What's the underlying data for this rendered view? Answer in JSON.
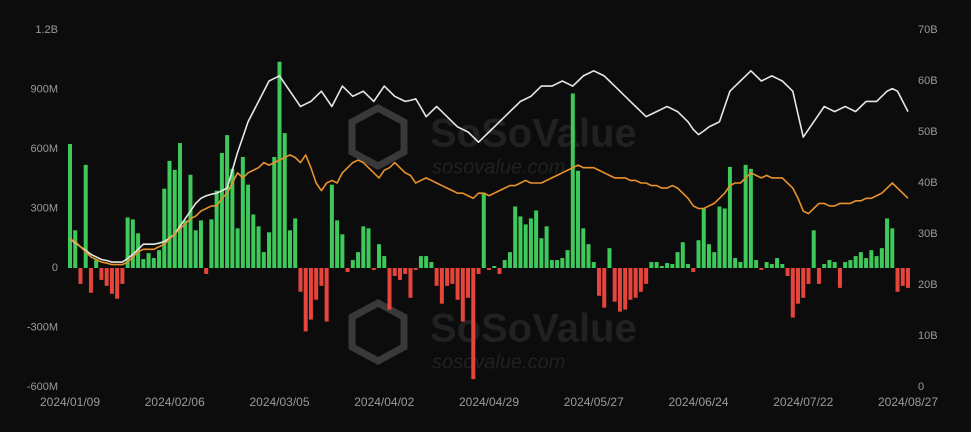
{
  "chart_data": {
    "type": "bar",
    "watermark": {
      "brand": "SoSoValue",
      "url": "sosovalue.com"
    },
    "categories": [
      "2024/01/09",
      null,
      null,
      null,
      null,
      null,
      null,
      null,
      null,
      null,
      null,
      null,
      null,
      null,
      null,
      null,
      null,
      null,
      null,
      null,
      "2024/02/06",
      null,
      null,
      null,
      null,
      null,
      null,
      null,
      null,
      null,
      null,
      null,
      null,
      null,
      null,
      null,
      null,
      null,
      null,
      null,
      "2024/03/05",
      null,
      null,
      null,
      null,
      null,
      null,
      null,
      null,
      null,
      null,
      null,
      null,
      null,
      null,
      null,
      null,
      null,
      null,
      null,
      "2024/04/02",
      null,
      null,
      null,
      null,
      null,
      null,
      null,
      null,
      null,
      null,
      null,
      null,
      null,
      null,
      null,
      null,
      null,
      null,
      null,
      "2024/04/29",
      null,
      null,
      null,
      null,
      null,
      null,
      null,
      null,
      null,
      null,
      null,
      null,
      null,
      null,
      null,
      null,
      null,
      null,
      null,
      "2024/05/27",
      null,
      null,
      null,
      null,
      null,
      null,
      null,
      null,
      null,
      null,
      null,
      null,
      null,
      null,
      null,
      null,
      null,
      null,
      null,
      "2024/06/24",
      null,
      null,
      null,
      null,
      null,
      null,
      null,
      null,
      null,
      null,
      null,
      null,
      null,
      null,
      null,
      null,
      null,
      null,
      null,
      "2024/07/22",
      null,
      null,
      null,
      null,
      null,
      null,
      null,
      null,
      null,
      null,
      null,
      null,
      null,
      null,
      null,
      null,
      null,
      null,
      null,
      "2024/08/27"
    ],
    "series": [
      {
        "type": "bar",
        "axis": "y",
        "color": "#3ec95b",
        "negative_color": "#e6453c",
        "values": [
          625,
          190,
          -80,
          520,
          -125,
          40,
          -60,
          -90,
          -130,
          -155,
          -80,
          255,
          245,
          175,
          45,
          75,
          50,
          90,
          400,
          540,
          495,
          630,
          240,
          470,
          190,
          240,
          -30,
          245,
          390,
          580,
          670,
          500,
          200,
          560,
          420,
          270,
          210,
          80,
          180,
          560,
          1040,
          680,
          190,
          250,
          -120,
          -320,
          -260,
          -160,
          -90,
          -270,
          420,
          240,
          170,
          -20,
          40,
          80,
          210,
          200,
          -10,
          120,
          60,
          -210,
          -40,
          -60,
          -30,
          -150,
          -10,
          60,
          60,
          30,
          -90,
          -180,
          -90,
          -80,
          -160,
          -270,
          -150,
          -560,
          -30,
          380,
          -10,
          10,
          -30,
          40,
          80,
          310,
          260,
          220,
          250,
          290,
          150,
          210,
          40,
          40,
          50,
          90,
          880,
          490,
          200,
          120,
          30,
          -140,
          -200,
          100,
          -170,
          -220,
          -210,
          -160,
          -150,
          -120,
          -80,
          30,
          30,
          10,
          25,
          20,
          80,
          130,
          20,
          -20,
          140,
          300,
          120,
          80,
          310,
          300,
          510,
          50,
          30,
          520,
          500,
          40,
          -10,
          30,
          20,
          50,
          20,
          -40,
          -250,
          -180,
          -150,
          -80,
          190,
          -80,
          20,
          40,
          30,
          -100,
          30,
          40,
          60,
          80,
          50,
          90,
          60,
          100,
          250,
          200,
          -120,
          -90,
          -100
        ]
      },
      {
        "type": "line",
        "axis": "y2",
        "color": "#e6e6e6",
        "values": [
          29,
          28.3,
          27.5,
          26.8,
          26,
          25.5,
          25,
          24.8,
          24.5,
          24.5,
          24.5,
          25.2,
          26,
          27,
          28,
          28,
          28,
          28.2,
          28.5,
          29.2,
          30,
          31.5,
          33,
          34.5,
          36,
          37,
          37.5,
          37.8,
          38,
          38.5,
          39,
          42.5,
          46,
          49,
          52,
          54,
          56,
          58,
          60,
          60.5,
          61,
          59.5,
          58,
          56.5,
          55,
          55.5,
          56,
          57,
          58,
          56.5,
          55,
          57,
          59,
          58,
          57,
          57.5,
          58,
          57,
          56,
          57.5,
          59,
          58,
          57,
          56.5,
          56,
          56.2,
          56.5,
          54.8,
          53,
          54,
          55,
          54,
          53,
          52,
          51,
          50.5,
          50,
          49,
          48,
          49,
          50,
          51,
          52,
          53,
          54,
          55,
          56,
          56.5,
          57,
          58,
          59,
          59,
          59,
          59.5,
          60,
          59.5,
          59,
          60,
          61,
          61.5,
          62,
          61.5,
          61,
          60,
          59,
          58,
          57,
          56,
          55,
          54,
          53,
          53.5,
          54,
          54.5,
          55,
          54.5,
          54,
          53,
          52,
          50.5,
          49.5,
          50.2,
          51,
          51.5,
          52,
          55,
          58,
          59,
          60,
          61,
          62,
          61,
          60,
          60.5,
          61,
          60.5,
          60,
          59,
          58,
          53.5,
          49,
          50.5,
          52,
          53.5,
          55,
          54.5,
          54,
          54.5,
          55,
          54.5,
          54,
          55,
          56,
          56,
          56,
          57,
          58,
          58.5,
          58,
          56,
          54
        ]
      },
      {
        "type": "line",
        "axis": "y2",
        "color": "#e8922c",
        "values": [
          29,
          28.5,
          27.5,
          26.5,
          25.5,
          25,
          24.5,
          24.3,
          24,
          24,
          24,
          24.5,
          25.5,
          26.5,
          27,
          27,
          27,
          27.5,
          28,
          29,
          30,
          31,
          32,
          33,
          33.5,
          34.5,
          35,
          35.5,
          35.5,
          37,
          38,
          40,
          42,
          41,
          42,
          42.5,
          43,
          44,
          43.5,
          44,
          44.5,
          45,
          45.5,
          45,
          44,
          45.5,
          43,
          40,
          38.5,
          40,
          40.5,
          40,
          42,
          43,
          44,
          44.5,
          44,
          43,
          42,
          41,
          42.5,
          43,
          44,
          43,
          42,
          41.5,
          40,
          40.5,
          41,
          40.5,
          40,
          39.5,
          39,
          38.5,
          38,
          38,
          37.5,
          37,
          38,
          38,
          37.5,
          38,
          38.5,
          39,
          39.5,
          39.5,
          40,
          40.5,
          40,
          40,
          40,
          40.5,
          41,
          41.5,
          42,
          42.5,
          43,
          43.5,
          43,
          43,
          43,
          42.5,
          42,
          41.5,
          41,
          41,
          41,
          40.5,
          40.5,
          40,
          40,
          39.5,
          39.5,
          39,
          39,
          39.5,
          39,
          38,
          37,
          35.5,
          35,
          35,
          35.5,
          36,
          37,
          38,
          39.5,
          40,
          40,
          41,
          42,
          41.5,
          41,
          41.5,
          41,
          41,
          41,
          40,
          39,
          37,
          34.5,
          34,
          35,
          36,
          36,
          35.5,
          35.5,
          36,
          36,
          36,
          36.5,
          36.5,
          37,
          37,
          37.5,
          38,
          39,
          40,
          39,
          38,
          37
        ]
      }
    ],
    "ylim": [
      -600,
      1200
    ],
    "yticks": [
      {
        "value": -600,
        "label": "-600M"
      },
      {
        "value": -300,
        "label": "-300M"
      },
      0,
      {
        "value": 300,
        "label": "300M"
      },
      {
        "value": 600,
        "label": "600M"
      },
      {
        "value": 900,
        "label": "900M"
      },
      {
        "value": 1200,
        "label": "1.2B"
      }
    ],
    "y2lim": [
      0,
      70
    ],
    "y2ticks": [
      0,
      {
        "value": 10,
        "label": "10B"
      },
      {
        "value": 20,
        "label": "20B"
      },
      {
        "value": 30,
        "label": "30B"
      },
      {
        "value": 40,
        "label": "40B"
      },
      {
        "value": 50,
        "label": "50B"
      },
      {
        "value": 60,
        "label": "60B"
      },
      {
        "value": 70,
        "label": "70B"
      }
    ],
    "grid": false
  }
}
